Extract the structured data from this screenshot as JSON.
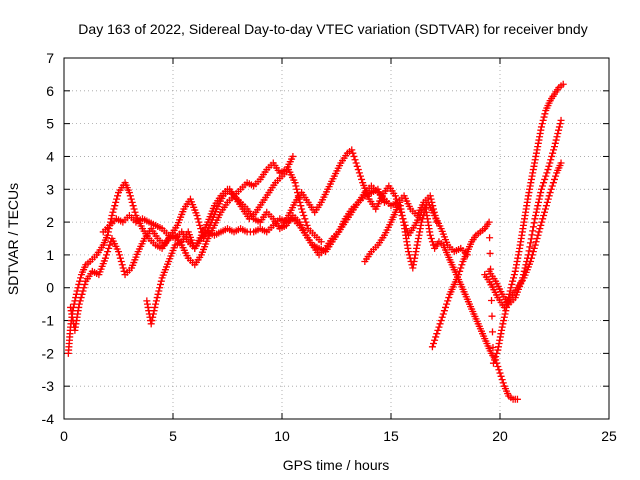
{
  "chart_data": {
    "type": "scatter",
    "title": "Day 163 of 2022, Sidereal Day-to-day VTEC variation (SDTVAR) for receiver bndy",
    "xlabel": "GPS time / hours",
    "ylabel": "SDTVAR / TECUs",
    "xlim": [
      0,
      25
    ],
    "ylim": [
      -4,
      7
    ],
    "xticks": [
      0,
      5,
      10,
      15,
      20,
      25
    ],
    "yticks": [
      -4,
      -3,
      -2,
      -1,
      0,
      1,
      2,
      3,
      4,
      5,
      6,
      7
    ],
    "grid": true,
    "marker": "+",
    "color": "#ff0000",
    "series": [
      {
        "x": [
          0.2,
          0.3,
          0.4,
          0.6,
          0.8,
          1.0,
          1.2,
          1.5,
          1.8,
          2.0,
          2.2,
          2.5,
          2.8,
          3.0,
          3.3,
          3.6,
          3.9,
          4.2,
          4.5,
          4.8,
          5.1,
          5.4,
          5.7,
          6.0,
          6.3,
          6.6,
          6.9,
          7.2,
          7.5,
          7.8,
          8.1,
          8.4,
          8.7,
          9.0,
          9.3,
          9.6,
          9.9,
          10.2,
          10.5
        ],
        "y": [
          -2.0,
          -1.2,
          -0.7,
          -0.1,
          0.4,
          0.7,
          0.8,
          1.0,
          1.3,
          1.6,
          2.2,
          2.9,
          3.2,
          2.9,
          2.2,
          1.8,
          1.5,
          1.3,
          1.2,
          1.5,
          1.6,
          1.3,
          0.9,
          0.7,
          1.0,
          1.5,
          1.9,
          2.3,
          2.6,
          2.8,
          3.0,
          3.2,
          3.1,
          3.3,
          3.6,
          3.8,
          3.5,
          3.6,
          4.0
        ]
      },
      {
        "x": [
          0.3,
          0.5,
          0.7,
          1.0,
          1.3,
          1.6,
          1.9,
          2.2,
          2.5,
          2.8,
          3.1,
          3.4,
          3.7,
          4.0,
          4.3,
          4.6,
          4.9,
          5.2,
          5.5,
          5.8,
          6.1,
          6.4,
          6.7,
          7.0,
          7.3,
          7.6,
          7.9,
          8.2,
          8.5,
          8.8,
          9.1,
          9.4,
          9.7,
          10.0,
          10.3,
          10.6,
          10.9,
          11.2,
          11.5,
          11.8
        ],
        "y": [
          -0.6,
          -1.3,
          -0.5,
          0.2,
          0.5,
          0.4,
          0.9,
          1.5,
          1.1,
          0.4,
          0.6,
          1.1,
          1.5,
          1.8,
          1.5,
          1.3,
          1.6,
          1.9,
          2.4,
          2.7,
          2.2,
          1.5,
          1.9,
          2.4,
          2.8,
          3.0,
          2.7,
          2.4,
          2.1,
          2.3,
          2.6,
          2.9,
          3.2,
          3.4,
          3.6,
          3.2,
          2.4,
          1.8,
          1.6,
          1.4
        ]
      },
      {
        "x": [
          3.8,
          4.0,
          4.2,
          4.5,
          4.8,
          5.1,
          5.4,
          5.7,
          6.0,
          6.3,
          6.6,
          6.9,
          7.2,
          7.5,
          7.8,
          8.1,
          8.4,
          8.7,
          9.0,
          9.3,
          9.6,
          9.9,
          10.2,
          10.5,
          10.8,
          11.1,
          11.4,
          11.7,
          12.0,
          12.3,
          12.6,
          12.9,
          13.2,
          13.5,
          13.8,
          14.1,
          14.4,
          14.7,
          15.0,
          15.3,
          15.6,
          15.9,
          16.2,
          16.5,
          16.8,
          17.1
        ],
        "y": [
          -0.4,
          -1.1,
          -0.5,
          0.3,
          0.8,
          1.3,
          1.4,
          1.7,
          1.2,
          1.6,
          2.0,
          2.5,
          2.8,
          3.0,
          2.8,
          2.6,
          2.4,
          2.1,
          2.0,
          2.3,
          2.1,
          1.8,
          1.9,
          2.2,
          2.0,
          1.6,
          1.3,
          1.0,
          1.2,
          1.5,
          1.7,
          2.0,
          2.3,
          2.6,
          2.9,
          3.1,
          2.9,
          2.7,
          2.5,
          2.6,
          2.8,
          2.4,
          2.2,
          2.6,
          2.8,
          2.0
        ]
      },
      {
        "x": [
          1.8,
          2.1,
          2.4,
          2.7,
          3.0,
          3.3,
          3.6,
          3.9,
          4.2,
          4.5,
          4.8,
          5.1,
          5.4,
          5.7,
          6.0,
          6.3,
          6.6,
          6.9,
          7.2,
          7.5,
          7.8,
          8.1,
          8.4,
          8.7,
          9.0,
          9.3,
          9.6,
          9.9,
          10.2,
          10.5,
          10.8,
          11.1,
          11.4,
          11.7,
          12.0,
          12.3,
          12.6,
          12.9,
          13.2,
          13.5,
          13.8,
          14.1,
          14.4,
          14.7
        ],
        "y": [
          1.7,
          1.9,
          2.1,
          2.0,
          2.2,
          2.0,
          2.1,
          2.0,
          1.9,
          1.8,
          1.6,
          1.5,
          1.7,
          1.4,
          1.2,
          1.5,
          1.7,
          1.6,
          1.7,
          1.8,
          1.7,
          1.8,
          1.7,
          1.7,
          1.8,
          1.7,
          1.9,
          2.1,
          2.0,
          2.1,
          1.9,
          1.6,
          1.3,
          1.2,
          1.1,
          1.4,
          1.7,
          2.1,
          2.4,
          2.6,
          2.8,
          2.9,
          3.0,
          2.6
        ]
      },
      {
        "x": [
          10.0,
          10.3,
          10.6,
          10.9,
          11.2,
          11.5,
          11.8,
          12.1,
          12.4,
          12.7,
          13.0,
          13.2,
          13.4,
          13.7,
          14.0,
          14.3,
          14.6,
          14.9,
          15.2,
          15.5,
          15.8,
          16.1,
          16.4,
          16.7,
          17.0,
          17.3,
          17.6,
          17.9,
          18.2,
          18.5
        ],
        "y": [
          1.9,
          2.2,
          2.6,
          2.9,
          2.6,
          2.3,
          2.6,
          3.0,
          3.4,
          3.8,
          4.1,
          4.2,
          3.8,
          3.2,
          2.7,
          2.4,
          2.8,
          3.1,
          2.8,
          2.2,
          1.6,
          1.9,
          2.3,
          2.6,
          2.2,
          1.8,
          1.3,
          1.1,
          1.2,
          1.0
        ]
      },
      {
        "x": [
          13.8,
          14.1,
          14.4,
          14.7,
          15.0,
          15.2,
          15.4,
          15.6,
          15.8,
          16.0,
          16.2,
          16.4,
          16.6,
          16.8,
          17.0,
          17.2,
          17.4,
          17.6,
          17.8,
          18.0,
          18.2,
          18.4,
          18.6,
          18.8,
          19.0,
          19.2,
          19.4,
          19.6,
          19.8,
          20.0,
          20.2,
          20.4,
          20.6,
          20.8
        ],
        "y": [
          0.8,
          1.1,
          1.3,
          1.6,
          2.0,
          2.3,
          2.6,
          1.9,
          1.1,
          0.6,
          1.3,
          2.0,
          2.4,
          1.6,
          1.2,
          1.4,
          1.3,
          1.0,
          0.7,
          0.4,
          0.1,
          -0.2,
          -0.5,
          -0.8,
          -1.1,
          -1.4,
          -1.7,
          -2.0,
          -2.2,
          -2.6,
          -3.0,
          -3.3,
          -3.4,
          -3.4
        ]
      },
      {
        "x": [
          16.9,
          17.1,
          17.3,
          17.5,
          17.7,
          17.9,
          18.1,
          18.3,
          18.5,
          18.7,
          18.9,
          19.1,
          19.3,
          19.5,
          19.7,
          19.9,
          20.1,
          20.3,
          20.5,
          20.7,
          20.9,
          21.1,
          21.3,
          21.5,
          21.7,
          21.9,
          22.1,
          22.3,
          22.5,
          22.7,
          22.9
        ],
        "y": [
          -1.8,
          -1.4,
          -1.0,
          -0.6,
          -0.2,
          0.1,
          0.4,
          0.8,
          1.1,
          1.4,
          1.6,
          1.7,
          1.8,
          2.0,
          -2.3,
          -1.9,
          -1.2,
          -0.6,
          0.0,
          0.5,
          1.2,
          2.0,
          2.8,
          3.5,
          4.2,
          4.9,
          5.4,
          5.7,
          5.9,
          6.1,
          6.2
        ]
      },
      {
        "x": [
          19.5,
          19.8,
          20.1,
          20.4,
          20.7,
          21.0,
          21.3,
          21.6,
          21.9,
          22.2,
          22.5,
          22.8
        ],
        "y": [
          0.5,
          0.2,
          -0.2,
          -0.5,
          -0.3,
          0.2,
          1.0,
          2.1,
          3.0,
          3.6,
          4.3,
          5.1
        ]
      },
      {
        "x": [
          19.3,
          19.6,
          19.9,
          20.2,
          20.5,
          20.8,
          21.1,
          21.4,
          21.7,
          22.0,
          22.3,
          22.6,
          22.8
        ],
        "y": [
          0.4,
          0.1,
          -0.3,
          -0.6,
          -0.3,
          0.0,
          0.3,
          0.8,
          1.5,
          2.2,
          2.9,
          3.5,
          3.8
        ]
      }
    ]
  }
}
